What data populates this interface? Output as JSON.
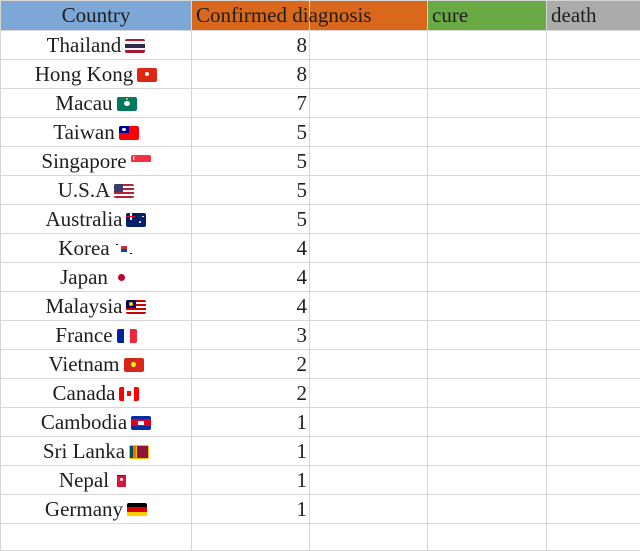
{
  "headers": {
    "country": "Country",
    "confirmed": "Confirmed diagnosis",
    "cure": "cure",
    "death": "death"
  },
  "rows": [
    {
      "country": "Thailand",
      "confirmed": "8",
      "flag": "thailand-flag-icon"
    },
    {
      "country": "Hong Kong",
      "confirmed": "8",
      "flag": "hong-kong-flag-icon"
    },
    {
      "country": "Macau",
      "confirmed": "7",
      "flag": "macau-flag-icon"
    },
    {
      "country": "Taiwan",
      "confirmed": "5",
      "flag": "taiwan-flag-icon"
    },
    {
      "country": "Singapore",
      "confirmed": "5",
      "flag": "singapore-flag-icon"
    },
    {
      "country": "U.S.A",
      "confirmed": "5",
      "flag": "usa-flag-icon"
    },
    {
      "country": "Australia",
      "confirmed": "5",
      "flag": "australia-flag-icon"
    },
    {
      "country": "Korea",
      "confirmed": "4",
      "flag": "korea-flag-icon"
    },
    {
      "country": "Japan",
      "confirmed": "4",
      "flag": "japan-flag-icon"
    },
    {
      "country": "Malaysia",
      "confirmed": "4",
      "flag": "malaysia-flag-icon"
    },
    {
      "country": "France",
      "confirmed": "3",
      "flag": "france-flag-icon"
    },
    {
      "country": "Vietnam",
      "confirmed": "2",
      "flag": "vietnam-flag-icon"
    },
    {
      "country": "Canada",
      "confirmed": "2",
      "flag": "canada-flag-icon"
    },
    {
      "country": "Cambodia",
      "confirmed": "1",
      "flag": "cambodia-flag-icon"
    },
    {
      "country": "Sri Lanka",
      "confirmed": "1",
      "flag": "sri-lanka-flag-icon"
    },
    {
      "country": "Nepal",
      "confirmed": "1",
      "flag": "nepal-flag-icon"
    },
    {
      "country": "Germany",
      "confirmed": "1",
      "flag": "germany-flag-icon"
    }
  ],
  "colors": {
    "country_header": "#7da7d6",
    "confirmed_header": "#d9671c",
    "cure_header": "#6aaa45",
    "death_header": "#ababab",
    "gridline": "#d6d6d6"
  }
}
